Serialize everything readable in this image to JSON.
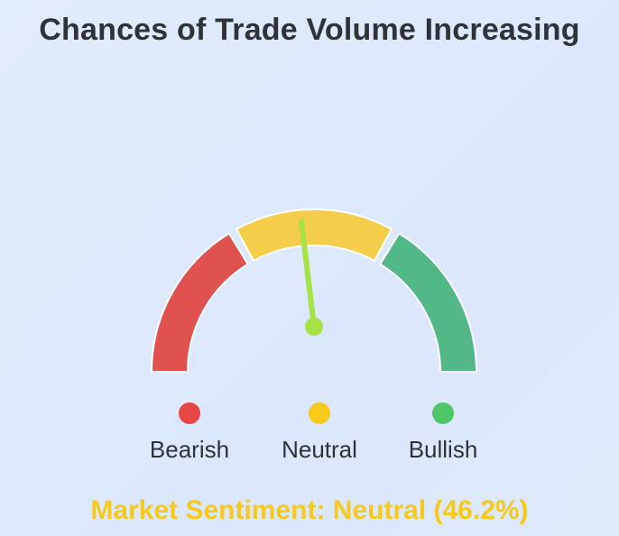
{
  "chart_data": {
    "type": "gauge",
    "title": "Chances of Trade Volume Increasing",
    "value": 46.2,
    "range": [
      0,
      100
    ],
    "zones": [
      {
        "name": "Bearish",
        "from": 0,
        "to": 33.3,
        "color": "#e0524f"
      },
      {
        "name": "Neutral",
        "from": 33.3,
        "to": 66.7,
        "color": "#f4cd4a"
      },
      {
        "name": "Bullish",
        "from": 66.7,
        "to": 100,
        "color": "#53b887"
      }
    ],
    "legend": [
      {
        "label": "Bearish",
        "color": "#e84545"
      },
      {
        "label": "Neutral",
        "color": "#f6c91a"
      },
      {
        "label": "Bullish",
        "color": "#4ec766"
      }
    ],
    "needle_color": "#a6e243",
    "sentiment_label": "Market Sentiment: Neutral (46.2%)",
    "sentiment_color": "#f6c91a"
  }
}
